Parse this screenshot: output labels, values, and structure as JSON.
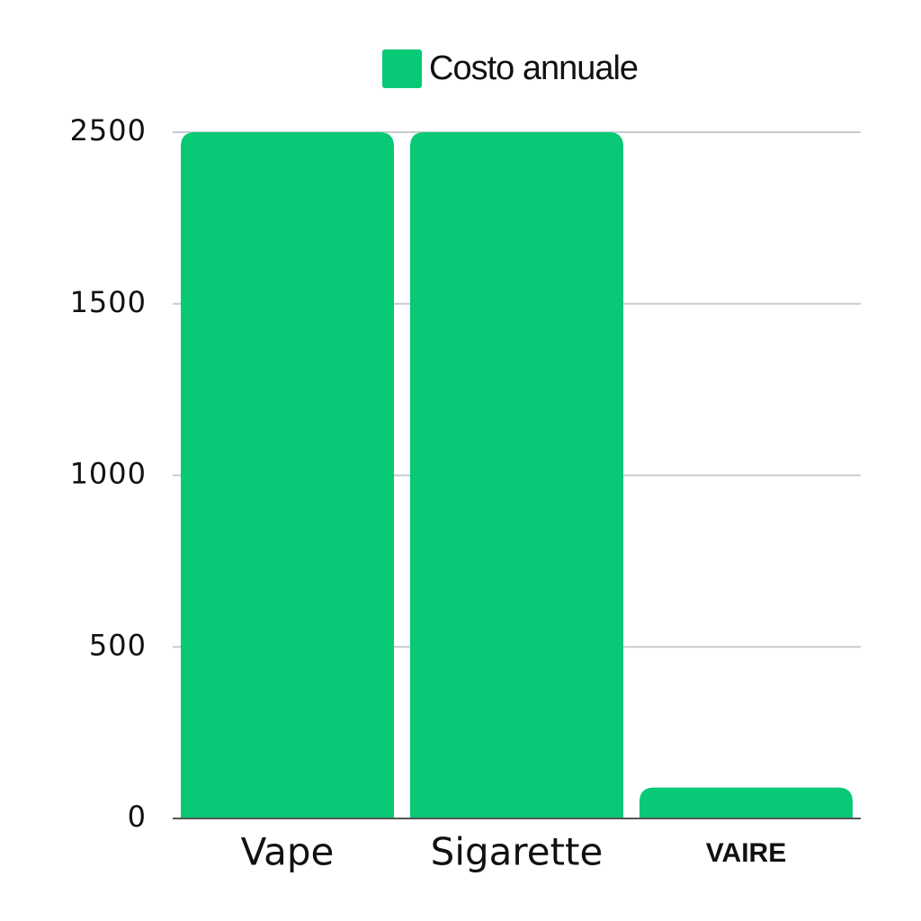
{
  "chart_data": {
    "type": "bar",
    "legend": "Costo annuale",
    "categories": [
      "Vape",
      "Sigarette",
      "VAIRE"
    ],
    "values": [
      2500,
      2500,
      90
    ],
    "color": "#08c975",
    "ylim": [
      0,
      2500
    ],
    "yticks": [
      0,
      500,
      1000,
      1500,
      2500
    ],
    "grid": true
  }
}
